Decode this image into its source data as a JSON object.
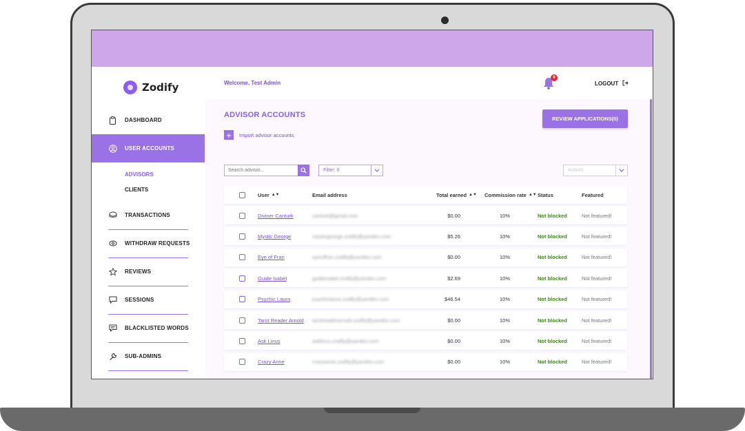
{
  "brand": {
    "name": "Zodify"
  },
  "header": {
    "welcome": "Welcome, Test Admin",
    "notifications_count": "9",
    "logout_label": "LOGOUT"
  },
  "sidebar": {
    "items": [
      {
        "label": "DASHBOARD",
        "icon": "clipboard-icon"
      },
      {
        "label": "USER ACCOUNTS",
        "icon": "user-circle-icon",
        "active": true
      },
      {
        "label": "TRANSACTIONS",
        "icon": "coins-icon"
      },
      {
        "label": "WITHDRAW REQUESTS",
        "icon": "money-icon"
      },
      {
        "label": "REVIEWS",
        "icon": "star-icon"
      },
      {
        "label": "SESSIONS",
        "icon": "chat-icon"
      },
      {
        "label": "BLACKLISTED WORDS",
        "icon": "chat-lines-icon"
      },
      {
        "label": "SUB-ADMINS",
        "icon": "wrench-icon"
      }
    ],
    "sub_items": [
      {
        "label": "ADVISORS",
        "active": true
      },
      {
        "label": "CLIENTS"
      }
    ]
  },
  "page": {
    "title": "ADVISOR ACCOUNTS",
    "review_button": "REVIEW APPLICATIONS(0)",
    "import_label": "Import advisor accounts",
    "search_placeholder": "Search advisor...",
    "filter_label": "Filter: 0",
    "actions_label": "Actions"
  },
  "table": {
    "columns": [
      "User",
      "Email address",
      "Total earned",
      "Commission rate",
      "Status",
      "Featured"
    ],
    "rows": [
      {
        "user": "Diviner Canturk",
        "email": "canturk@gmail.com",
        "earned": "$0.00",
        "rate": "10%",
        "status": "Not blocked",
        "featured": "Not featured!"
      },
      {
        "user": "Mystic George",
        "email": "mysticgeorge.zodify@yandex.com",
        "earned": "$5.26",
        "rate": "10%",
        "status": "Not blocked",
        "featured": "Not featured!"
      },
      {
        "user": "Eye of Fran",
        "email": "eyeoffran.zodify@yandex.com",
        "earned": "$0.00",
        "rate": "10%",
        "status": "Not blocked",
        "featured": "Not featured!"
      },
      {
        "user": "Guide Isabel",
        "email": "guideisabel.zodify@yandex.com",
        "earned": "$2.69",
        "rate": "10%",
        "status": "Not blocked",
        "featured": "Not featured!"
      },
      {
        "user": "Psychic Laura",
        "email": "psychiclaura.zodify@yandex.com",
        "earned": "$46.54",
        "rate": "10%",
        "status": "Not blocked",
        "featured": "Not featured!"
      },
      {
        "user": "Tarot Reader Arnold",
        "email": "tarotreaderarnold.zodify@yandex.com",
        "earned": "$0.00",
        "rate": "10%",
        "status": "Not blocked",
        "featured": "Not featured!"
      },
      {
        "user": "Ask Linus",
        "email": "asklinus.zodify@yandex.com",
        "earned": "$0.00",
        "rate": "10%",
        "status": "Not blocked",
        "featured": "Not featured!"
      },
      {
        "user": "Crazy Anne",
        "email": "crazyanne.zodify@yandex.com",
        "earned": "$0.00",
        "rate": "10%",
        "status": "Not blocked",
        "featured": "Not featured!"
      }
    ]
  },
  "colors": {
    "accent": "#9b72e6",
    "top_band": "#cda7ea",
    "status_ok": "#3b8a12",
    "badge": "#e0283c"
  }
}
